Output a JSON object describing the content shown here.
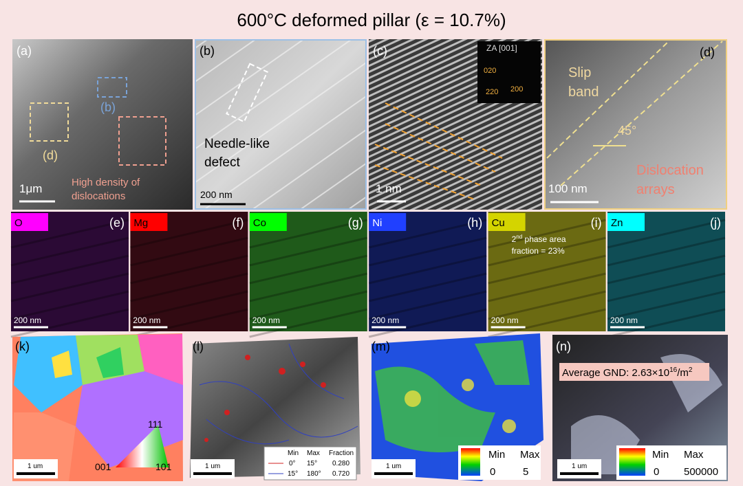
{
  "title": "600°C deformed pillar (ε = 10.7%)",
  "panel_a": {
    "label": "(a)",
    "box_b": "(b)",
    "box_d": "(d)",
    "scale": "1μm",
    "note": [
      "High density of",
      "dislocations"
    ]
  },
  "panel_b": {
    "label": "(b)",
    "note": [
      "Needle-like",
      "defect"
    ],
    "scale": "200 nm"
  },
  "panel_c": {
    "label": "(c)",
    "inset_title": "ZA [001]",
    "spots": [
      "020",
      "220",
      "200"
    ],
    "scale": "1 nm"
  },
  "panel_d": {
    "label": "(d)",
    "band": [
      "Slip",
      "band"
    ],
    "angle": "45°",
    "arrays": [
      "Dislocation",
      "arrays"
    ],
    "scale": "100 nm"
  },
  "eds": [
    {
      "element": "O",
      "label": "(e)",
      "scale": "200 nm"
    },
    {
      "element": "Mg",
      "label": "(f)",
      "scale": "200 nm"
    },
    {
      "element": "Co",
      "label": "(g)",
      "scale": "200 nm"
    },
    {
      "element": "Ni",
      "label": "(h)",
      "scale": "200 nm"
    },
    {
      "element": "Cu",
      "label": "(i)",
      "scale": "200 nm"
    },
    {
      "element": "Zn",
      "label": "(j)",
      "scale": "200 nm"
    }
  ],
  "eds_note": [
    "2",
    "nd",
    " phase area",
    "fraction = 23%"
  ],
  "panel_k": {
    "label": "(k)",
    "scale": "1 um",
    "ipf": [
      "111",
      "001",
      "101"
    ]
  },
  "panel_l": {
    "label": "(l)",
    "scale": "1 um",
    "legend": {
      "header": [
        "Min",
        "Max",
        "Fraction"
      ],
      "rows": [
        [
          "0°",
          "15°",
          "0.280"
        ],
        [
          "15°",
          "180°",
          "0.720"
        ]
      ]
    }
  },
  "panel_m": {
    "label": "(m)",
    "scale": "1 um",
    "colorbar": {
      "header": [
        "Min",
        "Max"
      ],
      "ticks": [
        "0",
        "5"
      ]
    }
  },
  "panel_n": {
    "label": "(n)",
    "gnd": [
      "Average GND: 2.63×10",
      "16",
      "/m",
      "2"
    ],
    "scale": "1 um",
    "colorbar": {
      "header": [
        "Min",
        "Max"
      ],
      "ticks": [
        "0",
        "500000"
      ]
    }
  }
}
